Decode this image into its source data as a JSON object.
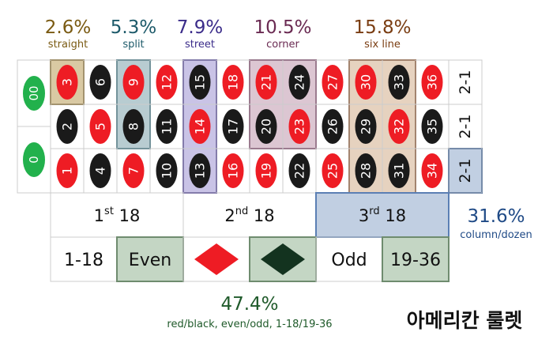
{
  "title": "아메리칸 룰렛",
  "bets": {
    "straight": {
      "pct": "2.6%",
      "label": "straight",
      "color": "#7a5a12"
    },
    "split": {
      "pct": "5.3%",
      "label": "split",
      "color": "#1d5a6a"
    },
    "street": {
      "pct": "7.9%",
      "label": "street",
      "color": "#3b2c8a"
    },
    "corner": {
      "pct": "10.5%",
      "label": "corner",
      "color": "#6a2a52"
    },
    "sixline": {
      "pct": "15.8%",
      "label": "six line",
      "color": "#7a3d12"
    }
  },
  "column_dozen": {
    "pct": "31.6%",
    "label": "column/dozen",
    "color": "#1f4a86"
  },
  "even_money": {
    "pct": "47.4%",
    "label": "red/black, even/odd, 1-18/19-36",
    "color": "#1f5a2a"
  },
  "zeros": [
    "00",
    "0"
  ],
  "numbers": [
    {
      "n": "3",
      "c": "red"
    },
    {
      "n": "6",
      "c": "black"
    },
    {
      "n": "9",
      "c": "red"
    },
    {
      "n": "12",
      "c": "red"
    },
    {
      "n": "15",
      "c": "black"
    },
    {
      "n": "18",
      "c": "red"
    },
    {
      "n": "21",
      "c": "red"
    },
    {
      "n": "24",
      "c": "black"
    },
    {
      "n": "27",
      "c": "red"
    },
    {
      "n": "30",
      "c": "red"
    },
    {
      "n": "33",
      "c": "black"
    },
    {
      "n": "36",
      "c": "red"
    },
    {
      "n": "2",
      "c": "black"
    },
    {
      "n": "5",
      "c": "red"
    },
    {
      "n": "8",
      "c": "black"
    },
    {
      "n": "11",
      "c": "black"
    },
    {
      "n": "14",
      "c": "red"
    },
    {
      "n": "17",
      "c": "black"
    },
    {
      "n": "20",
      "c": "black"
    },
    {
      "n": "23",
      "c": "red"
    },
    {
      "n": "26",
      "c": "black"
    },
    {
      "n": "29",
      "c": "black"
    },
    {
      "n": "32",
      "c": "red"
    },
    {
      "n": "35",
      "c": "black"
    },
    {
      "n": "1",
      "c": "red"
    },
    {
      "n": "4",
      "c": "black"
    },
    {
      "n": "7",
      "c": "red"
    },
    {
      "n": "10",
      "c": "black"
    },
    {
      "n": "13",
      "c": "black"
    },
    {
      "n": "16",
      "c": "red"
    },
    {
      "n": "19",
      "c": "red"
    },
    {
      "n": "22",
      "c": "black"
    },
    {
      "n": "25",
      "c": "red"
    },
    {
      "n": "28",
      "c": "black"
    },
    {
      "n": "31",
      "c": "black"
    },
    {
      "n": "34",
      "c": "red"
    }
  ],
  "columns": [
    "2-1",
    "2-1",
    "2-1"
  ],
  "dozens": [
    {
      "base": "1",
      "sup": "st",
      "rest": " 18"
    },
    {
      "base": "2",
      "sup": "nd",
      "rest": " 18"
    },
    {
      "base": "3",
      "sup": "rd",
      "rest": " 18"
    }
  ],
  "outside": [
    "1-18",
    "Even",
    "",
    "",
    "Odd",
    "19-36"
  ],
  "colors": {
    "red": "#ee1c24",
    "black": "#1a1a1a",
    "green": "#22b14c",
    "grid": "#cccccc"
  }
}
